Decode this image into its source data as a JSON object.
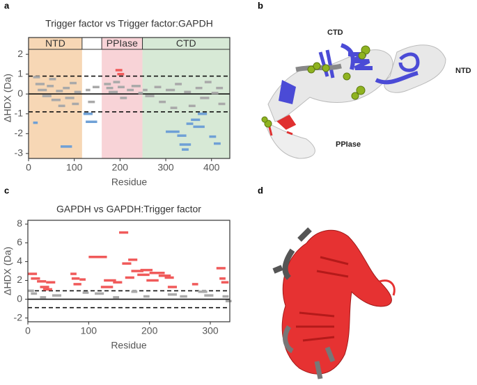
{
  "panel_labels": [
    "a",
    "b",
    "c",
    "d"
  ],
  "chart_data": [
    {
      "type": "segment",
      "title": "Trigger factor vs Trigger factor:GAPDH",
      "xlabel": "Residue",
      "ylabel": "ΔHDX (Da)",
      "xlim": [
        0,
        440
      ],
      "ylim": [
        -3.25,
        2.25
      ],
      "xticks": [
        0,
        100,
        200,
        300,
        400
      ],
      "yticks": [
        -3,
        -2,
        -1,
        0,
        1,
        2
      ],
      "regions": [
        {
          "label": "NTD",
          "start": 0,
          "end": 117,
          "color": "#f7d7b5"
        },
        {
          "label": "PPIase",
          "start": 160,
          "end": 249,
          "color": "#f8d3d7"
        },
        {
          "label": "CTD",
          "start": 249,
          "end": 440,
          "color": "#d7e9d6"
        }
      ],
      "hlines": [
        {
          "value": 0.9,
          "style": "dashed"
        },
        {
          "value": 0,
          "style": "solid"
        },
        {
          "value": -0.9,
          "style": "dashed"
        }
      ],
      "series": [
        {
          "color": "#a9a9a9",
          "start": [
            10,
            15,
            20,
            30,
            40,
            45,
            50,
            60,
            65,
            75,
            80,
            90,
            95,
            100,
            125,
            130,
            140,
            165,
            170,
            175,
            185,
            195,
            200,
            215,
            225,
            240,
            250,
            255,
            275,
            285,
            300,
            310,
            320,
            340,
            350,
            365,
            375,
            385,
            400,
            410,
            415
          ],
          "end": [
            25,
            35,
            40,
            50,
            55,
            60,
            70,
            75,
            80,
            90,
            100,
            105,
            110,
            115,
            135,
            145,
            155,
            180,
            185,
            195,
            200,
            210,
            215,
            230,
            245,
            250,
            260,
            275,
            290,
            300,
            320,
            325,
            335,
            355,
            365,
            380,
            395,
            400,
            415,
            425,
            430
          ],
          "values": [
            0.85,
            0.5,
            0.2,
            -0.1,
            0.4,
            0.75,
            -0.3,
            0.15,
            -0.6,
            0.3,
            -0.2,
            0.55,
            -0.5,
            0.1,
            0.2,
            -0.4,
            0.35,
            0.5,
            0.3,
            0.1,
            0.6,
            0.35,
            -0.2,
            0.2,
            0.4,
            0.05,
            0.2,
            -0.1,
            0.35,
            -0.4,
            0.2,
            -0.7,
            0.5,
            0.1,
            -0.6,
            0.3,
            -0.2,
            0.6,
            0.05,
            0.3,
            -0.5
          ]
        },
        {
          "color": "#6fa0d6",
          "start": [
            10,
            70,
            120,
            125,
            300,
            325,
            330,
            335,
            345,
            355,
            360,
            370,
            395,
            405
          ],
          "end": [
            20,
            95,
            140,
            150,
            330,
            345,
            355,
            350,
            360,
            375,
            385,
            390,
            410,
            420
          ],
          "values": [
            -1.45,
            -2.65,
            -1.0,
            -1.4,
            -1.9,
            -2.1,
            -2.55,
            -2.8,
            -1.5,
            -1.3,
            -1.65,
            -1.0,
            -2.15,
            -2.5
          ]
        },
        {
          "color": "#f05a5a",
          "start": [
            194,
            190
          ],
          "end": [
            209,
            205
          ],
          "values": [
            1.0,
            1.2
          ]
        }
      ]
    },
    {
      "type": "segment",
      "title": "GAPDH vs GAPDH:Trigger factor",
      "xlabel": "Residue",
      "ylabel": "ΔHDX (Da)",
      "xlim": [
        0,
        332
      ],
      "ylim": [
        -2.4,
        8.4
      ],
      "xticks": [
        0,
        100,
        200,
        300
      ],
      "yticks": [
        -2,
        0,
        2,
        4,
        6,
        8
      ],
      "regions": [],
      "hlines": [
        {
          "value": 0.9,
          "style": "dashed"
        },
        {
          "value": 0,
          "style": "solid"
        },
        {
          "value": -0.9,
          "style": "dashed"
        }
      ],
      "series": [
        {
          "color": "#a9a9a9",
          "start": [
            0,
            5,
            20,
            40,
            90,
            110,
            140,
            170,
            190,
            230,
            250,
            280,
            290,
            325,
            320
          ],
          "end": [
            10,
            15,
            30,
            55,
            100,
            125,
            150,
            180,
            200,
            245,
            262,
            295,
            305,
            335,
            330
          ],
          "values": [
            0.9,
            0.6,
            0.2,
            0.4,
            0.7,
            0.6,
            0.2,
            0.8,
            0.3,
            0.5,
            0.3,
            0.8,
            0.4,
            -0.2,
            0.3
          ]
        },
        {
          "color": "#f05a5a",
          "start": [
            0,
            5,
            15,
            20,
            25,
            30,
            70,
            72,
            75,
            85,
            100,
            120,
            125,
            140,
            150,
            155,
            165,
            160,
            170,
            180,
            185,
            195,
            200,
            215,
            225,
            230,
            270,
            310,
            315,
            318
          ],
          "end": [
            15,
            20,
            30,
            35,
            40,
            45,
            80,
            85,
            88,
            95,
            130,
            140,
            145,
            155,
            165,
            170,
            180,
            175,
            190,
            200,
            205,
            215,
            225,
            235,
            240,
            245,
            280,
            325,
            325,
            330
          ],
          "values": [
            2.7,
            2.2,
            1.9,
            1.3,
            1.05,
            1.8,
            2.7,
            2.2,
            1.6,
            2.1,
            4.5,
            1.3,
            2.0,
            1.8,
            7.1,
            3.8,
            4.2,
            2.3,
            3.0,
            2.6,
            3.1,
            2.0,
            2.8,
            2.5,
            2.3,
            1.3,
            1.6,
            3.3,
            2.2,
            1.8
          ]
        }
      ]
    }
  ],
  "structures": {
    "b": {
      "labels": [
        "CTD",
        "NTD",
        "PPIase"
      ]
    }
  }
}
